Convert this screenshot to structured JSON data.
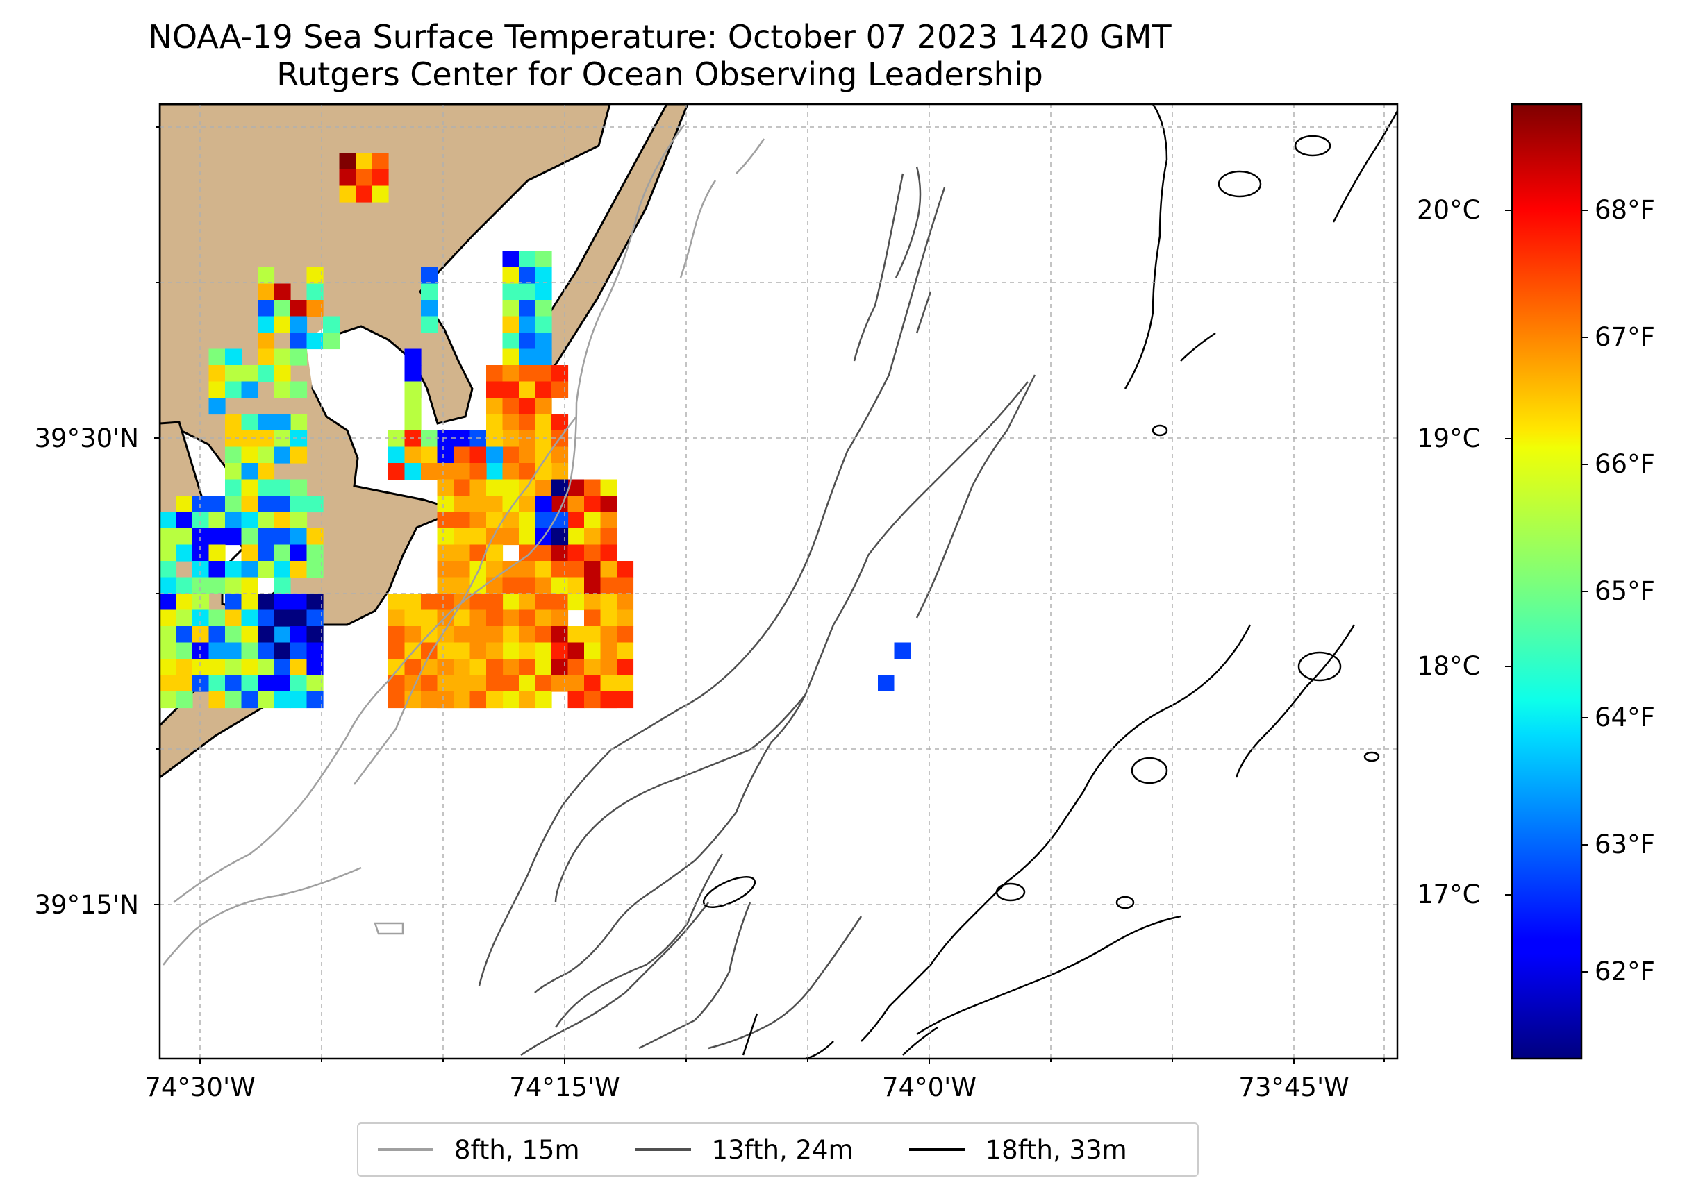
{
  "title": {
    "line1": "NOAA-19 Sea Surface Temperature: October 07 2023 1420 GMT",
    "line2": "Rutgers Center for Ocean Observing Leadership"
  },
  "axes": {
    "latitude_labels": [
      "39°30'N",
      "39°15'N"
    ],
    "longitude_labels": [
      "74°30'W",
      "74°15'W",
      "74°0'W",
      "73°45'W"
    ]
  },
  "colorbar": {
    "celsius_labels": [
      "20°C",
      "19°C",
      "18°C",
      "17°C"
    ],
    "fahrenheit_labels": [
      "68°F",
      "67°F",
      "66°F",
      "65°F",
      "64°F",
      "63°F",
      "62°F"
    ],
    "range_f": [
      61.3,
      68.8
    ],
    "colormap": "jet"
  },
  "legend": {
    "items": [
      {
        "label": "8fth, 15m",
        "color": "#a0a0a0"
      },
      {
        "label": "13fth, 24m",
        "color": "#505050"
      },
      {
        "label": "18fth, 33m",
        "color": "#000000"
      }
    ]
  },
  "colors": {
    "land": "#d2b48c",
    "grid": "#b0b0b0"
  }
}
